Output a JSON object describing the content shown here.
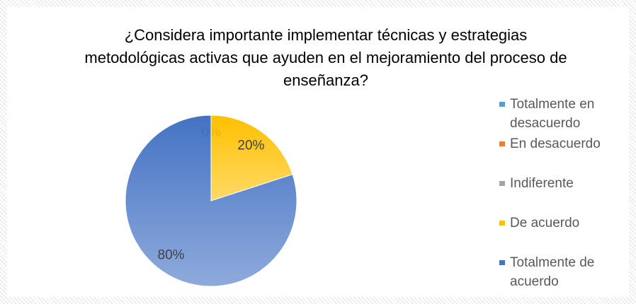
{
  "chart_data": {
    "type": "pie",
    "title": "¿Considera importante implementar técnicas y estrategias metodológicas activas que ayuden en el mejoramiento del proceso de enseñanza?",
    "categories": [
      "Totalmente en desacuerdo",
      "En desacuerdo",
      "Indiferente",
      "De acuerdo",
      "Totalmente de acuerdo"
    ],
    "values": [
      0,
      0,
      0,
      20,
      80
    ],
    "value_labels": [
      "0%",
      "0%",
      "0%",
      "20%",
      "80%"
    ],
    "colors": [
      "#5b9bd5",
      "#ed7d31",
      "#a5a5a5",
      "#ffc000",
      "#4472c4"
    ],
    "legend": "right"
  }
}
